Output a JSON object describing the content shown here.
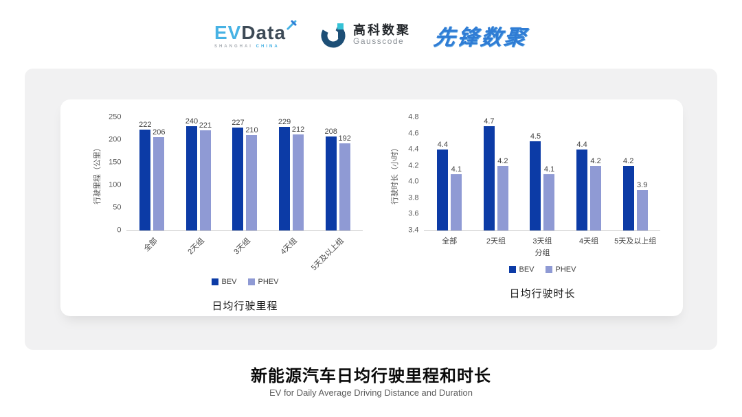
{
  "header": {
    "evdata": {
      "ev": "EV",
      "data": "Data",
      "sub_left": "SHANGHAI",
      "sub_right": "CHINA"
    },
    "gausscode": {
      "cn": "高科数聚",
      "en": "Gausscode"
    },
    "xianfeng": "先锋数聚"
  },
  "colors": {
    "bev": "#0c3ba6",
    "phev": "#8f9ad4",
    "axis_line": "#c9c9c9"
  },
  "chart_data": [
    {
      "type": "bar",
      "title": "日均行驶里程",
      "ylabel": "行驶里程（公里）",
      "xlabel": "",
      "categories": [
        "全部",
        "2天组",
        "3天组",
        "4天组",
        "5天及以上组"
      ],
      "series": [
        {
          "name": "BEV",
          "color": "#0c3ba6",
          "values": [
            222,
            240,
            227,
            229,
            208
          ]
        },
        {
          "name": "PHEV",
          "color": "#8f9ad4",
          "values": [
            206,
            221,
            210,
            212,
            192
          ]
        }
      ],
      "ylim": [
        0,
        250
      ],
      "yticks": [
        "0",
        "50",
        "100",
        "150",
        "200",
        "250"
      ],
      "rotate_xlabels": true,
      "legend_position": "bottom",
      "grid": false
    },
    {
      "type": "bar",
      "title": "日均行驶时长",
      "ylabel": "行驶时长（小时）",
      "xlabel": "分组",
      "categories": [
        "全部",
        "2天组",
        "3天组",
        "4天组",
        "5天及以上组"
      ],
      "series": [
        {
          "name": "BEV",
          "color": "#0c3ba6",
          "values": [
            4.4,
            4.7,
            4.5,
            4.4,
            4.2
          ]
        },
        {
          "name": "PHEV",
          "color": "#8f9ad4",
          "values": [
            4.1,
            4.2,
            4.1,
            4.2,
            3.9
          ]
        }
      ],
      "ylim": [
        3.4,
        4.8
      ],
      "yticks": [
        "3.4",
        "3.6",
        "3.8",
        "4.0",
        "4.2",
        "4.4",
        "4.6",
        "4.8"
      ],
      "rotate_xlabels": false,
      "legend_position": "bottom",
      "grid": false
    }
  ],
  "footer": {
    "title": "新能源汽车日均行驶里程和时长",
    "subtitle": "EV for Daily Average Driving Distance and Duration"
  }
}
